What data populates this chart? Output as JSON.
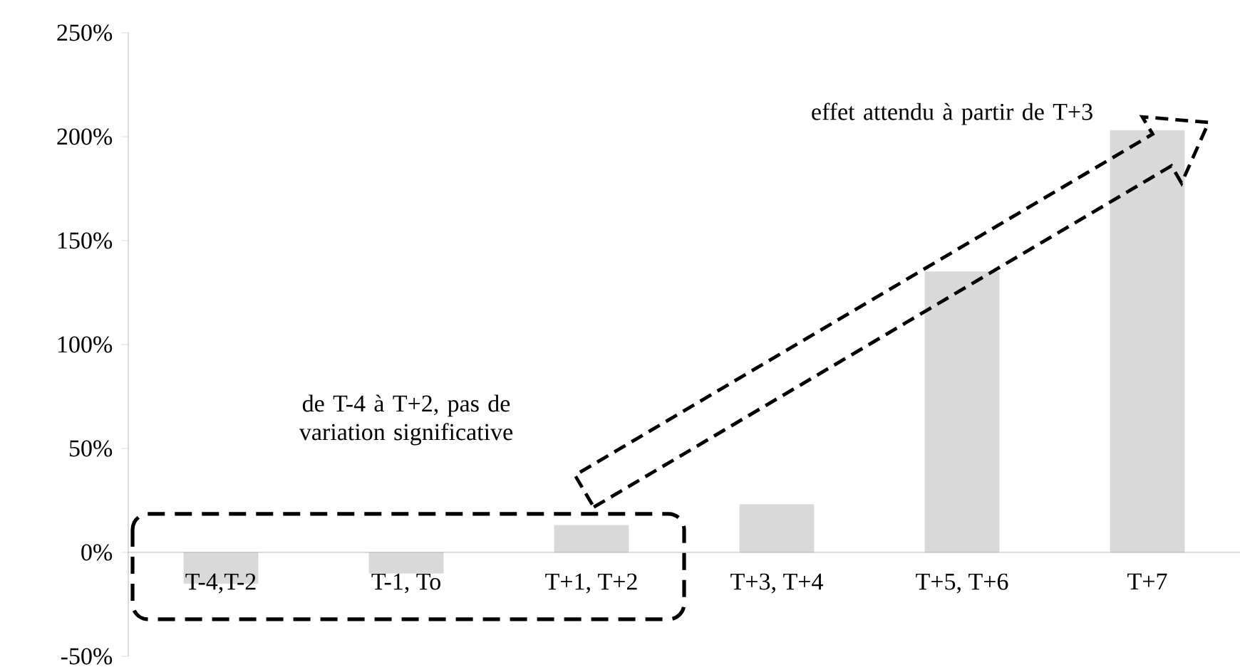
{
  "chart_data": {
    "type": "bar",
    "categories": [
      "T-4,T-2",
      "T-1, To",
      "T+1, T+2",
      "T+3, T+4",
      "T+5, T+6",
      "T+7"
    ],
    "values": [
      -15,
      -10,
      13,
      23,
      135,
      203
    ],
    "color": "#d9d9d9",
    "ylim": [
      -50,
      250
    ],
    "yticks": [
      {
        "value": -50,
        "label": "-50%"
      },
      {
        "value": 0,
        "label": "0%"
      },
      {
        "value": 50,
        "label": "50%"
      },
      {
        "value": 100,
        "label": "100%"
      },
      {
        "value": 150,
        "label": "150%"
      },
      {
        "value": 200,
        "label": "200%"
      },
      {
        "value": 250,
        "label": "250%"
      }
    ],
    "annotations": [
      "de T-4 à T+2, pas de variation significative",
      "effet attendu à partir de T+3"
    ],
    "grid": false
  }
}
